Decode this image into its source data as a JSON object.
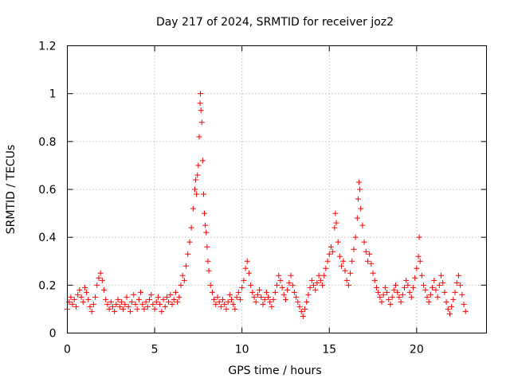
{
  "chart_data": {
    "type": "scatter",
    "title": "Day 217 of 2024, SRMTID for receiver joz2",
    "xlabel": "GPS time / hours",
    "ylabel": "SRMTID / TECUs",
    "xlim": [
      0,
      24
    ],
    "ylim": [
      0,
      1.2
    ],
    "xticks": [
      0,
      5,
      10,
      15,
      20
    ],
    "xtick_labels": [
      "0",
      "5",
      "10",
      "15",
      "20"
    ],
    "yticks": [
      0,
      0.2,
      0.4,
      0.6,
      0.8,
      1.0,
      1.2
    ],
    "ytick_labels": [
      "0",
      "0.2",
      "0.4",
      "0.6",
      "0.8",
      "1",
      "1.2"
    ],
    "grid": true,
    "marker": "+",
    "color": "#ff0000",
    "series": [
      {
        "name": "joz2",
        "points": [
          [
            0.0,
            0.1
          ],
          [
            0.1,
            0.13
          ],
          [
            0.2,
            0.15
          ],
          [
            0.3,
            0.12
          ],
          [
            0.4,
            0.14
          ],
          [
            0.5,
            0.11
          ],
          [
            0.6,
            0.16
          ],
          [
            0.7,
            0.18
          ],
          [
            0.8,
            0.15
          ],
          [
            0.9,
            0.13
          ],
          [
            1.0,
            0.19
          ],
          [
            1.1,
            0.17
          ],
          [
            1.2,
            0.14
          ],
          [
            1.3,
            0.11
          ],
          [
            1.4,
            0.09
          ],
          [
            1.5,
            0.12
          ],
          [
            1.6,
            0.15
          ],
          [
            1.7,
            0.2
          ],
          [
            1.8,
            0.23
          ],
          [
            1.9,
            0.25
          ],
          [
            2.0,
            0.22
          ],
          [
            2.1,
            0.18
          ],
          [
            2.2,
            0.14
          ],
          [
            2.3,
            0.12
          ],
          [
            2.4,
            0.1
          ],
          [
            2.5,
            0.13
          ],
          [
            2.6,
            0.11
          ],
          [
            2.7,
            0.09
          ],
          [
            2.8,
            0.12
          ],
          [
            2.9,
            0.14
          ],
          [
            3.0,
            0.11
          ],
          [
            3.1,
            0.13
          ],
          [
            3.2,
            0.1
          ],
          [
            3.3,
            0.12
          ],
          [
            3.4,
            0.15
          ],
          [
            3.5,
            0.11
          ],
          [
            3.6,
            0.09
          ],
          [
            3.7,
            0.13
          ],
          [
            3.8,
            0.16
          ],
          [
            3.9,
            0.12
          ],
          [
            4.0,
            0.1
          ],
          [
            4.1,
            0.14
          ],
          [
            4.2,
            0.17
          ],
          [
            4.3,
            0.12
          ],
          [
            4.4,
            0.1
          ],
          [
            4.5,
            0.13
          ],
          [
            4.6,
            0.11
          ],
          [
            4.7,
            0.14
          ],
          [
            4.8,
            0.16
          ],
          [
            4.9,
            0.12
          ],
          [
            5.0,
            0.1
          ],
          [
            5.1,
            0.13
          ],
          [
            5.2,
            0.15
          ],
          [
            5.3,
            0.12
          ],
          [
            5.4,
            0.09
          ],
          [
            5.5,
            0.14
          ],
          [
            5.6,
            0.11
          ],
          [
            5.7,
            0.15
          ],
          [
            5.8,
            0.13
          ],
          [
            5.9,
            0.16
          ],
          [
            6.0,
            0.12
          ],
          [
            6.1,
            0.14
          ],
          [
            6.2,
            0.17
          ],
          [
            6.3,
            0.13
          ],
          [
            6.4,
            0.15
          ],
          [
            6.5,
            0.2
          ],
          [
            6.6,
            0.24
          ],
          [
            6.7,
            0.22
          ],
          [
            6.8,
            0.28
          ],
          [
            6.9,
            0.33
          ],
          [
            7.0,
            0.38
          ],
          [
            7.1,
            0.44
          ],
          [
            7.2,
            0.52
          ],
          [
            7.3,
            0.6
          ],
          [
            7.35,
            0.64
          ],
          [
            7.4,
            0.58
          ],
          [
            7.45,
            0.66
          ],
          [
            7.5,
            0.7
          ],
          [
            7.55,
            0.82
          ],
          [
            7.6,
            0.96
          ],
          [
            7.62,
            1.0
          ],
          [
            7.65,
            0.93
          ],
          [
            7.7,
            0.88
          ],
          [
            7.75,
            0.72
          ],
          [
            7.8,
            0.58
          ],
          [
            7.85,
            0.5
          ],
          [
            7.9,
            0.45
          ],
          [
            7.95,
            0.42
          ],
          [
            8.0,
            0.36
          ],
          [
            8.05,
            0.3
          ],
          [
            8.1,
            0.26
          ],
          [
            8.2,
            0.2
          ],
          [
            8.3,
            0.17
          ],
          [
            8.4,
            0.14
          ],
          [
            8.5,
            0.12
          ],
          [
            8.6,
            0.15
          ],
          [
            8.7,
            0.13
          ],
          [
            8.8,
            0.11
          ],
          [
            8.9,
            0.14
          ],
          [
            9.0,
            0.12
          ],
          [
            9.1,
            0.1
          ],
          [
            9.2,
            0.13
          ],
          [
            9.3,
            0.16
          ],
          [
            9.4,
            0.14
          ],
          [
            9.5,
            0.12
          ],
          [
            9.6,
            0.1
          ],
          [
            9.7,
            0.15
          ],
          [
            9.8,
            0.17
          ],
          [
            9.9,
            0.14
          ],
          [
            10.0,
            0.19
          ],
          [
            10.1,
            0.22
          ],
          [
            10.2,
            0.27
          ],
          [
            10.3,
            0.3
          ],
          [
            10.4,
            0.25
          ],
          [
            10.5,
            0.2
          ],
          [
            10.6,
            0.17
          ],
          [
            10.7,
            0.15
          ],
          [
            10.8,
            0.13
          ],
          [
            10.9,
            0.16
          ],
          [
            11.0,
            0.18
          ],
          [
            11.1,
            0.15
          ],
          [
            11.2,
            0.12
          ],
          [
            11.3,
            0.14
          ],
          [
            11.4,
            0.17
          ],
          [
            11.5,
            0.15
          ],
          [
            11.6,
            0.13
          ],
          [
            11.7,
            0.11
          ],
          [
            11.8,
            0.14
          ],
          [
            11.9,
            0.17
          ],
          [
            12.0,
            0.2
          ],
          [
            12.1,
            0.24
          ],
          [
            12.2,
            0.22
          ],
          [
            12.3,
            0.19
          ],
          [
            12.4,
            0.16
          ],
          [
            12.5,
            0.14
          ],
          [
            12.6,
            0.18
          ],
          [
            12.7,
            0.21
          ],
          [
            12.8,
            0.24
          ],
          [
            12.9,
            0.2
          ],
          [
            13.0,
            0.17
          ],
          [
            13.1,
            0.15
          ],
          [
            13.2,
            0.13
          ],
          [
            13.3,
            0.11
          ],
          [
            13.4,
            0.09
          ],
          [
            13.5,
            0.07
          ],
          [
            13.6,
            0.1
          ],
          [
            13.7,
            0.13
          ],
          [
            13.8,
            0.16
          ],
          [
            13.9,
            0.19
          ],
          [
            14.0,
            0.22
          ],
          [
            14.1,
            0.2
          ],
          [
            14.2,
            0.18
          ],
          [
            14.3,
            0.21
          ],
          [
            14.4,
            0.24
          ],
          [
            14.5,
            0.22
          ],
          [
            14.6,
            0.2
          ],
          [
            14.7,
            0.24
          ],
          [
            14.8,
            0.27
          ],
          [
            14.9,
            0.3
          ],
          [
            15.0,
            0.33
          ],
          [
            15.1,
            0.36
          ],
          [
            15.2,
            0.34
          ],
          [
            15.3,
            0.44
          ],
          [
            15.35,
            0.5
          ],
          [
            15.4,
            0.46
          ],
          [
            15.5,
            0.38
          ],
          [
            15.6,
            0.32
          ],
          [
            15.7,
            0.28
          ],
          [
            15.8,
            0.3
          ],
          [
            15.9,
            0.26
          ],
          [
            16.0,
            0.22
          ],
          [
            16.1,
            0.2
          ],
          [
            16.2,
            0.25
          ],
          [
            16.3,
            0.3
          ],
          [
            16.4,
            0.35
          ],
          [
            16.5,
            0.4
          ],
          [
            16.6,
            0.48
          ],
          [
            16.65,
            0.56
          ],
          [
            16.7,
            0.63
          ],
          [
            16.75,
            0.6
          ],
          [
            16.8,
            0.52
          ],
          [
            16.9,
            0.45
          ],
          [
            17.0,
            0.38
          ],
          [
            17.1,
            0.34
          ],
          [
            17.2,
            0.3
          ],
          [
            17.3,
            0.33
          ],
          [
            17.4,
            0.29
          ],
          [
            17.5,
            0.25
          ],
          [
            17.6,
            0.22
          ],
          [
            17.7,
            0.19
          ],
          [
            17.8,
            0.17
          ],
          [
            17.9,
            0.15
          ],
          [
            18.0,
            0.13
          ],
          [
            18.1,
            0.16
          ],
          [
            18.2,
            0.19
          ],
          [
            18.3,
            0.17
          ],
          [
            18.4,
            0.14
          ],
          [
            18.5,
            0.12
          ],
          [
            18.6,
            0.15
          ],
          [
            18.7,
            0.18
          ],
          [
            18.8,
            0.2
          ],
          [
            18.9,
            0.17
          ],
          [
            19.0,
            0.15
          ],
          [
            19.1,
            0.13
          ],
          [
            19.2,
            0.16
          ],
          [
            19.3,
            0.19
          ],
          [
            19.4,
            0.22
          ],
          [
            19.5,
            0.2
          ],
          [
            19.6,
            0.17
          ],
          [
            19.7,
            0.15
          ],
          [
            19.8,
            0.19
          ],
          [
            19.9,
            0.23
          ],
          [
            20.0,
            0.27
          ],
          [
            20.1,
            0.32
          ],
          [
            20.15,
            0.4
          ],
          [
            20.2,
            0.3
          ],
          [
            20.3,
            0.24
          ],
          [
            20.4,
            0.2
          ],
          [
            20.5,
            0.18
          ],
          [
            20.6,
            0.15
          ],
          [
            20.7,
            0.13
          ],
          [
            20.8,
            0.16
          ],
          [
            20.9,
            0.19
          ],
          [
            21.0,
            0.22
          ],
          [
            21.1,
            0.18
          ],
          [
            21.2,
            0.15
          ],
          [
            21.3,
            0.2
          ],
          [
            21.4,
            0.24
          ],
          [
            21.5,
            0.21
          ],
          [
            21.6,
            0.17
          ],
          [
            21.7,
            0.13
          ],
          [
            21.8,
            0.1
          ],
          [
            21.9,
            0.08
          ],
          [
            22.0,
            0.11
          ],
          [
            22.1,
            0.14
          ],
          [
            22.2,
            0.17
          ],
          [
            22.3,
            0.21
          ],
          [
            22.4,
            0.24
          ],
          [
            22.5,
            0.2
          ],
          [
            22.6,
            0.16
          ],
          [
            22.7,
            0.12
          ],
          [
            22.8,
            0.09
          ]
        ]
      }
    ]
  }
}
